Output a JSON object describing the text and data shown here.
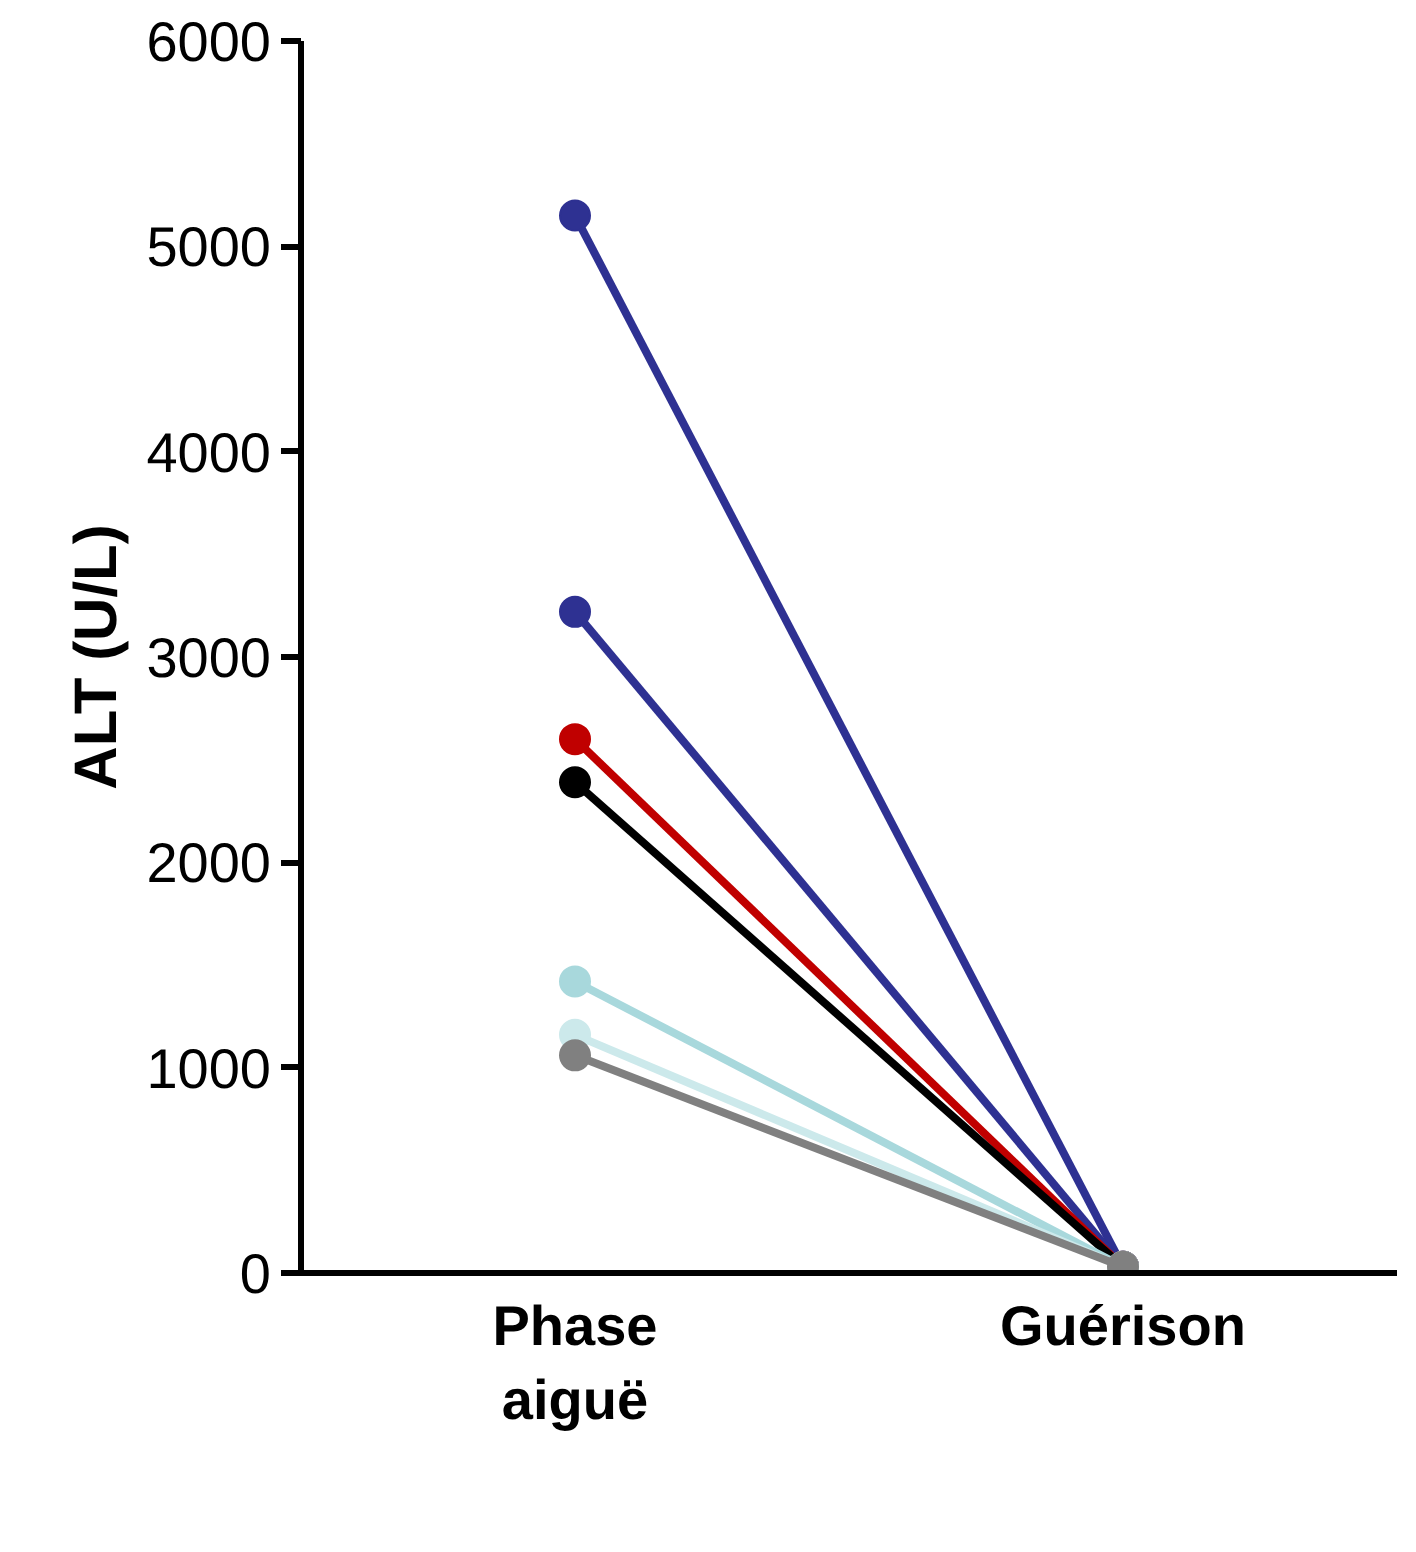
{
  "chart_data": {
    "type": "line",
    "ylabel": "ALT (U/L)",
    "categories": [
      "Phase aiguë",
      "Guérison"
    ],
    "series": [
      {
        "color": "#2e3192",
        "values": [
          5150,
          30
        ]
      },
      {
        "color": "#2e3192",
        "values": [
          3220,
          30
        ]
      },
      {
        "color": "#c00000",
        "values": [
          2600,
          30
        ]
      },
      {
        "color": "#000000",
        "values": [
          2390,
          30
        ]
      },
      {
        "color": "#a8d8dc",
        "values": [
          1420,
          30
        ]
      },
      {
        "color": "#cce9eb",
        "values": [
          1160,
          30
        ]
      },
      {
        "color": "#808080",
        "values": [
          1060,
          30
        ]
      }
    ],
    "ylim": [
      0,
      6000
    ],
    "yticks": [
      0,
      1000,
      2000,
      3000,
      4000,
      5000,
      6000
    ],
    "grid": false,
    "marker": "circle",
    "line_style": "solid"
  }
}
